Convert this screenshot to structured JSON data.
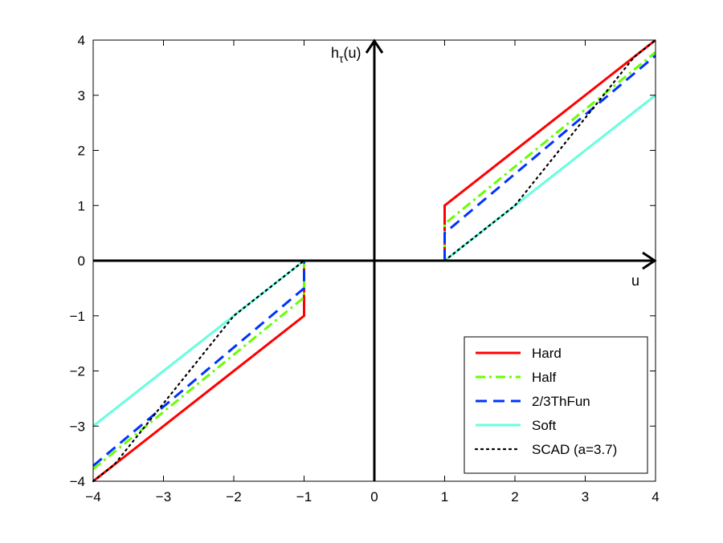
{
  "chart_data": {
    "type": "line",
    "xlim": [
      -4,
      4
    ],
    "ylim": [
      -4,
      4
    ],
    "xticks": [
      -4,
      -3,
      -2,
      -1,
      0,
      1,
      2,
      3,
      4
    ],
    "yticks": [
      -4,
      -3,
      -2,
      -1,
      0,
      1,
      2,
      3,
      4
    ],
    "xticklabels": [
      "−4",
      "−3",
      "−2",
      "−1",
      "0",
      "1",
      "2",
      "3",
      "4"
    ],
    "yticklabels": [
      "−4",
      "−3",
      "−2",
      "−1",
      "0",
      "1",
      "2",
      "3",
      "4"
    ],
    "xlabel": "u",
    "ylabel_main": "h",
    "ylabel_sub": "τ",
    "ylabel_tail": "(u)",
    "grid": false,
    "legend_position": "bottom-right",
    "series": [
      {
        "name": "Hard",
        "color": "#ff0000",
        "style": "solid",
        "segments": [
          [
            [
              -4,
              -4
            ],
            [
              -1,
              -1
            ],
            [
              -1,
              0
            ]
          ],
          [
            [
              1,
              0
            ],
            [
              1,
              1
            ],
            [
              4,
              4
            ]
          ]
        ]
      },
      {
        "name": "Half",
        "color": "#66ff00",
        "style": "dashdot",
        "segments": [
          [
            [
              -4,
              -3.78
            ],
            [
              -1,
              -0.667
            ],
            [
              -1,
              0
            ]
          ],
          [
            [
              1,
              0
            ],
            [
              1,
              0.667
            ],
            [
              4,
              3.78
            ]
          ]
        ]
      },
      {
        "name": "2/3ThFun",
        "color": "#0033ff",
        "style": "dashed",
        "segments": [
          [
            [
              -4,
              -3.72
            ],
            [
              -1,
              -0.5
            ],
            [
              -1,
              0
            ]
          ],
          [
            [
              1,
              0
            ],
            [
              1,
              0.5
            ],
            [
              4,
              3.72
            ]
          ]
        ]
      },
      {
        "name": "Soft",
        "color": "#66ffdd",
        "style": "solid",
        "segments": [
          [
            [
              -4,
              -3
            ],
            [
              -1,
              0
            ]
          ],
          [
            [
              1,
              0
            ],
            [
              4,
              3
            ]
          ]
        ]
      },
      {
        "name": "SCAD (a=3.7)",
        "color": "#000000",
        "style": "dotted",
        "segments": [
          [
            [
              -4,
              -4
            ],
            [
              -3.7,
              -3.7
            ],
            [
              -2,
              -1
            ],
            [
              -1,
              0
            ]
          ],
          [
            [
              1,
              0
            ],
            [
              2,
              1
            ],
            [
              3.7,
              3.7
            ],
            [
              4,
              4
            ]
          ]
        ]
      }
    ]
  }
}
